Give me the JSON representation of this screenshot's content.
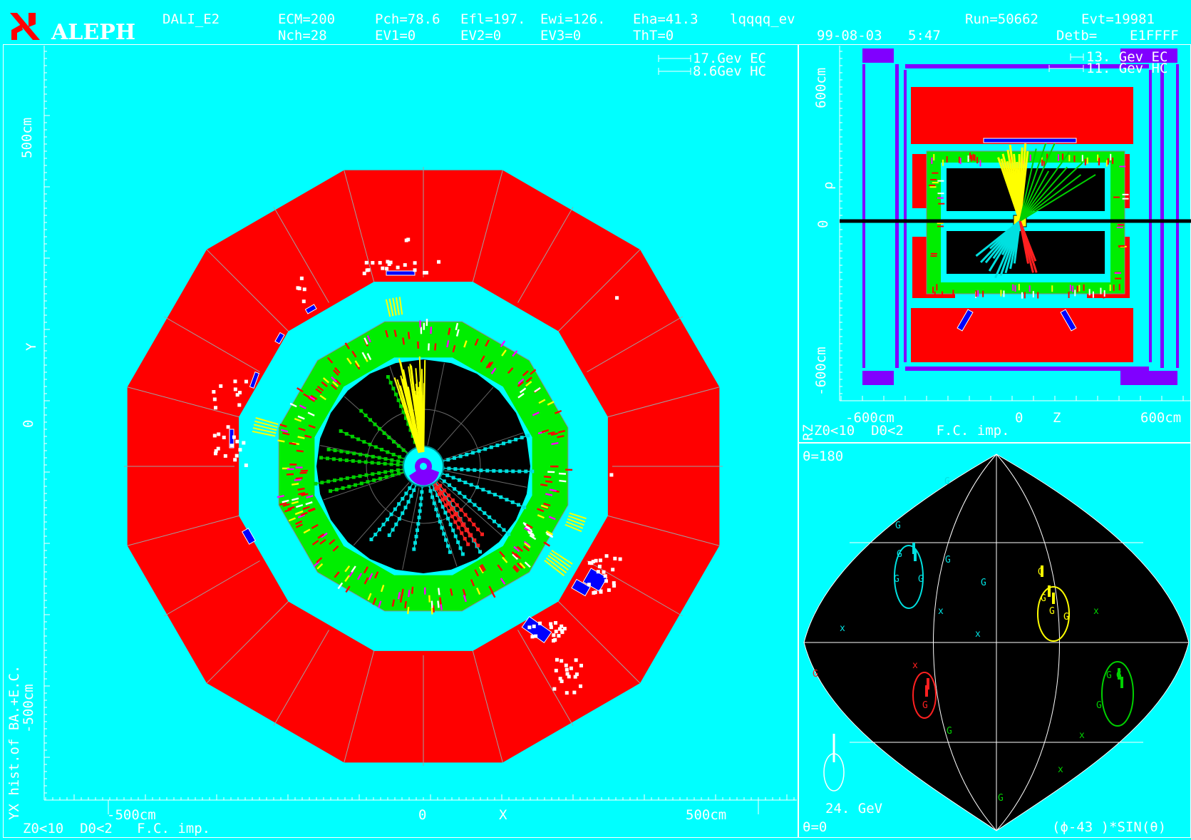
{
  "header": {
    "logo_text": "ALEPH",
    "program": "DALI_E2",
    "ecm": "ECM=200",
    "nch": "Nch=28",
    "pch": "Pch=78.6",
    "ev1": "EV1=0",
    "efl": "Efl=197.",
    "ev2": "EV2=0",
    "ewi": "Ewi=126.",
    "ev3": "EV3=0",
    "eha": "Eha=41.3",
    "tht": "ThT=0",
    "class": "lqqqq_ev",
    "run": "Run=50662",
    "evt": "Evt=19981",
    "date": "99-08-03",
    "time": "5:47",
    "detb": "Detb=",
    "detb_val": "E1FFFF"
  },
  "yx_view": {
    "legend_ec": "17.Gev EC",
    "legend_hc": "8.6Gev HC",
    "y_tick_pos": "500cm",
    "y_axis": "Y",
    "y_zero": "0",
    "y_tick_neg": "-500cm",
    "x_tick_neg": "-500cm",
    "x_zero": "0",
    "x_axis": "X",
    "x_tick_pos": "500cm",
    "side_title": "YX hist.of BA.+E.C.",
    "footer": "Z0<10  D0<2   F.C. imp."
  },
  "rz_view": {
    "legend_ec": "13. Gev EC",
    "legend_hc": "11. Gev HC",
    "y_tick_pos": "600cm",
    "y_axis": "ρ",
    "y_zero": "0",
    "y_tick_neg": "-600cm",
    "x_tick_neg": "-600cm",
    "x_zero": "0",
    "x_axis": "Z",
    "x_tick_pos": "600cm",
    "side_title": "RZ",
    "footer": "Z0<10  D0<2    F.C. imp."
  },
  "lego_view": {
    "theta_top": "θ=180",
    "theta_bottom": "θ=0",
    "energy_scale": "24. GeV",
    "axis_formula": "(ϕ-43 )*SIN(θ)"
  },
  "colors": {
    "background": "#00ffff",
    "ecal": "#00ff00",
    "hcal": "#ff0000",
    "tpc": "#000000",
    "magnet": "#8000ff",
    "jet_yellow": "#ffff00",
    "jet_cyan": "#00e0e0",
    "jet_red": "#ff0000",
    "jet_green": "#00d000",
    "muon_hits": "#ffffff",
    "muon_chambers": "#0000ff"
  }
}
